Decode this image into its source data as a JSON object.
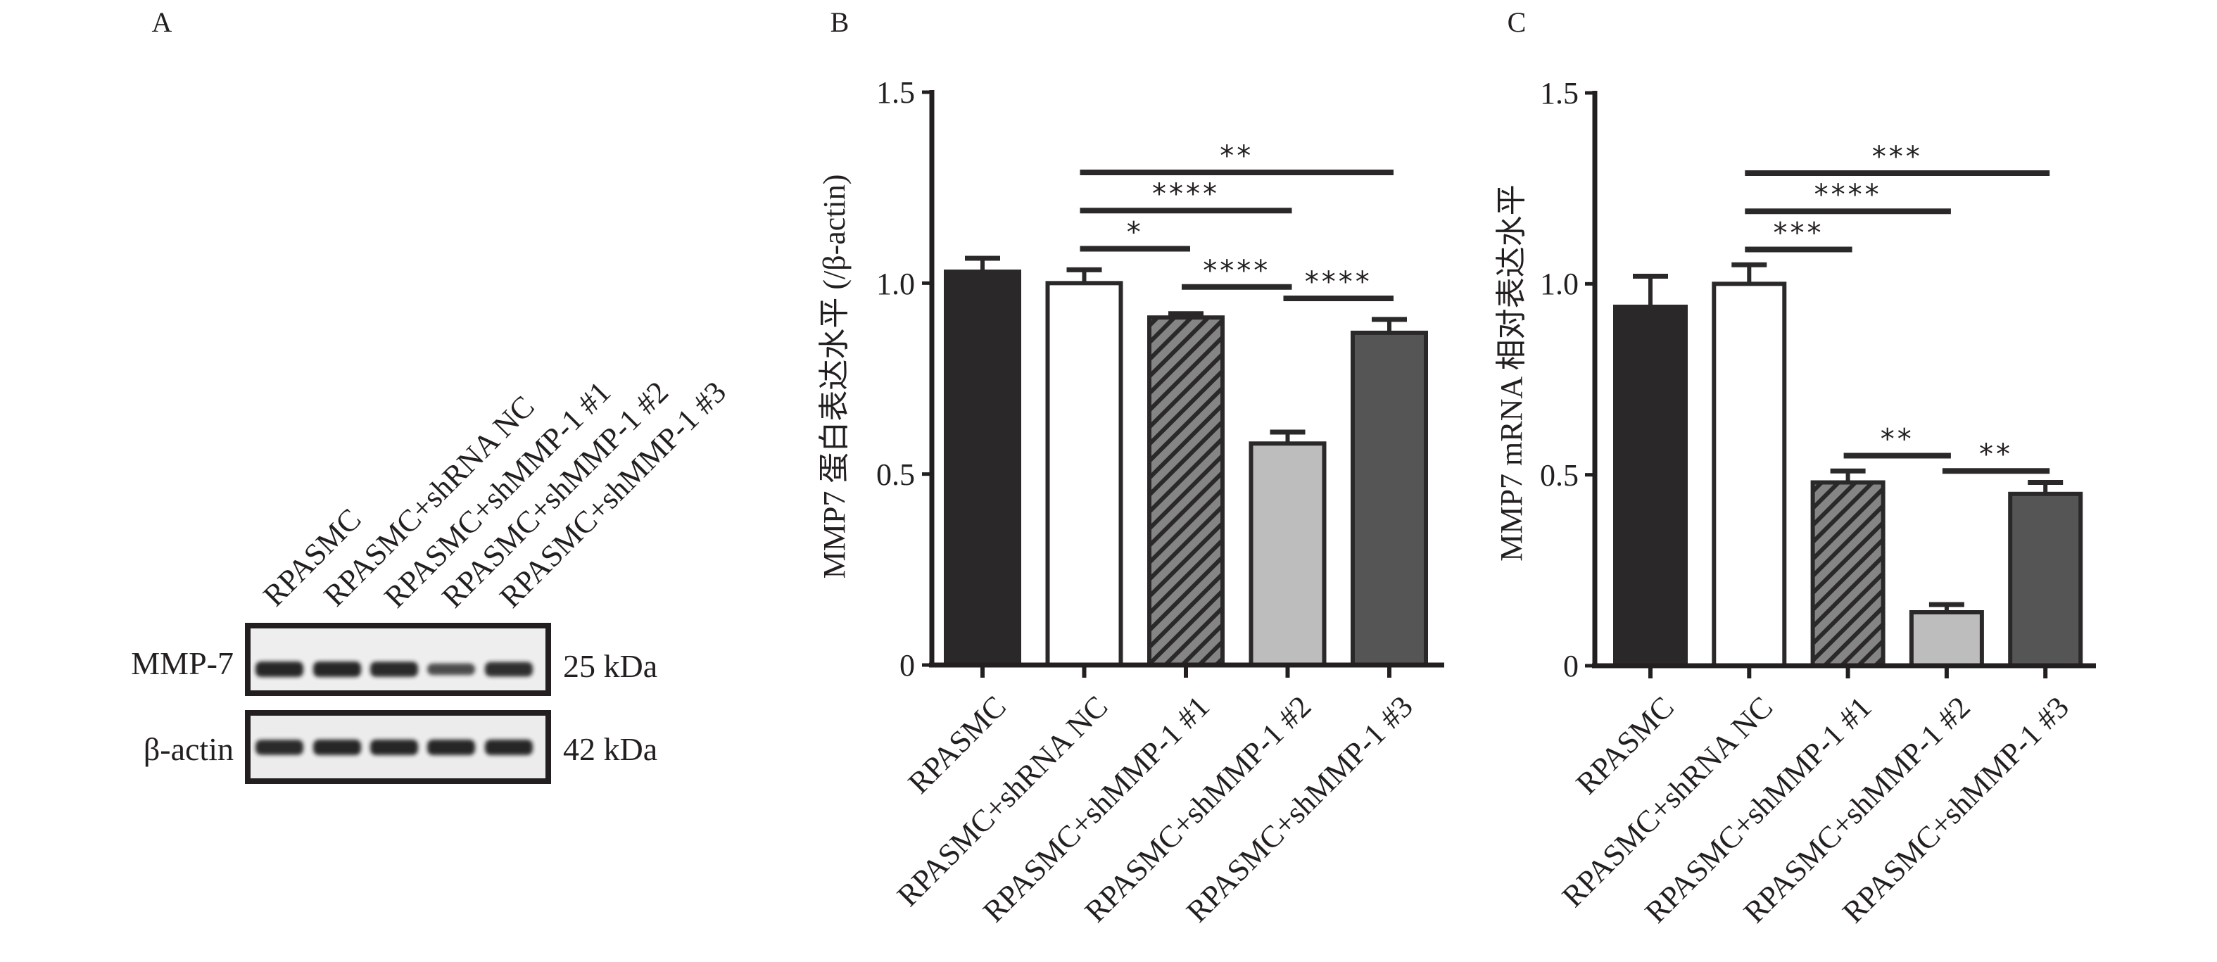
{
  "figure": {
    "panels": [
      "A",
      "B",
      "C"
    ]
  },
  "blot": {
    "lanes": [
      "RPASMC",
      "RPASMC+shRNA NC",
      "RPASMC+shMMP-1 #1",
      "RPASMC+shMMP-1 #2",
      "RPASMC+shMMP-1 #3"
    ],
    "rows": [
      {
        "protein": "MMP-7",
        "size": "25 kDa",
        "band_intensity": [
          1.0,
          1.0,
          0.95,
          0.55,
          0.9
        ]
      },
      {
        "protein": "β-actin",
        "size": "42 kDa",
        "band_intensity": [
          0.95,
          1.0,
          1.0,
          1.0,
          1.0
        ]
      }
    ]
  },
  "colors": {
    "axis": "#231f20",
    "bar_fills": [
      "#2b2829",
      "#ffffff",
      "#858585",
      "#bdbdbd",
      "#555555"
    ],
    "bar_border": "#2b2829",
    "hatch": "#2b2829"
  },
  "chart_data": [
    {
      "panel": "B",
      "type": "bar",
      "title": "",
      "xlabel": "",
      "ylabel": "MMP7 蛋白表达水平 (/β-actin)",
      "ylim": [
        0,
        1.5
      ],
      "yticks": [
        0,
        0.5,
        1.0,
        1.5
      ],
      "ytick_labels": [
        "0",
        "0.5",
        "1.0",
        "1.5"
      ],
      "grid": false,
      "categories": [
        "RPASMC",
        "RPASMC+shRNA NC",
        "RPASMC+shMMP-1 #1",
        "RPASMC+shMMP-1 #2",
        "RPASMC+shMMP-1 #3"
      ],
      "values": [
        1.03,
        1.0,
        0.91,
        0.58,
        0.87
      ],
      "errors": [
        0.035,
        0.035,
        0.01,
        0.03,
        0.035
      ],
      "significance": [
        {
          "from": 1,
          "to": 4,
          "label": "**",
          "y": 1.29
        },
        {
          "from": 1,
          "to": 3,
          "label": "****",
          "y": 1.19
        },
        {
          "from": 1,
          "to": 2,
          "label": "*",
          "y": 1.09
        },
        {
          "from": 2,
          "to": 3,
          "label": "****",
          "y": 0.99
        },
        {
          "from": 3,
          "to": 4,
          "label": "****",
          "y": 0.96
        }
      ]
    },
    {
      "panel": "C",
      "type": "bar",
      "title": "",
      "xlabel": "",
      "ylabel": "MMP7 mRNA 相对表达水平",
      "ylim": [
        0,
        1.5
      ],
      "yticks": [
        0,
        0.5,
        1.0,
        1.5
      ],
      "ytick_labels": [
        "0",
        "0.5",
        "1.0",
        "1.5"
      ],
      "grid": false,
      "categories": [
        "RPASMC",
        "RPASMC+shRNA NC",
        "RPASMC+shMMP-1 #1",
        "RPASMC+shMMP-1 #2",
        "RPASMC+shMMP-1 #3"
      ],
      "values": [
        0.94,
        1.0,
        0.48,
        0.14,
        0.45
      ],
      "errors": [
        0.08,
        0.05,
        0.03,
        0.02,
        0.03
      ],
      "significance": [
        {
          "from": 1,
          "to": 4,
          "label": "***",
          "y": 1.29
        },
        {
          "from": 1,
          "to": 3,
          "label": "****",
          "y": 1.19
        },
        {
          "from": 1,
          "to": 2,
          "label": "***",
          "y": 1.09
        },
        {
          "from": 2,
          "to": 3,
          "label": "**",
          "y": 0.55
        },
        {
          "from": 3,
          "to": 4,
          "label": "**",
          "y": 0.51
        }
      ]
    }
  ]
}
